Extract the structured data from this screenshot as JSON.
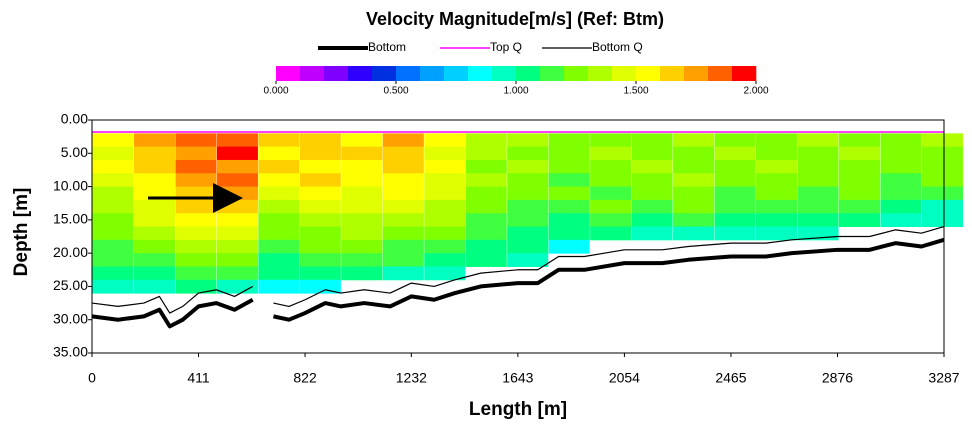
{
  "chart_data": {
    "type": "heatmap",
    "title": "Velocity Magnitude[m/s] (Ref: Btm)",
    "x_label": "Length [m]",
    "y_label": "Depth [m]",
    "xlim": [
      0,
      3287
    ],
    "ylim": [
      0,
      35
    ],
    "y_inverted": true,
    "xticks": [
      0,
      411,
      822,
      1232,
      1643,
      2054,
      2465,
      2876,
      3287
    ],
    "yticks": [
      {
        "value": 0,
        "label": "0.00"
      },
      {
        "value": 5,
        "label": "5.00"
      },
      {
        "value": 10,
        "label": "10.00"
      },
      {
        "value": 15,
        "label": "15.00"
      },
      {
        "value": 20,
        "label": "20.00"
      },
      {
        "value": 25,
        "label": "25.00"
      },
      {
        "value": 30,
        "label": "30.00"
      },
      {
        "value": 35,
        "label": "35.00"
      }
    ],
    "colorbar": {
      "lim": [
        0,
        2
      ],
      "ticks": [
        {
          "value": 0,
          "label": "0.000"
        },
        {
          "value": 0.5,
          "label": "0.500"
        },
        {
          "value": 1,
          "label": "1.000"
        },
        {
          "value": 1.5,
          "label": "1.500"
        },
        {
          "value": 2,
          "label": "2.000"
        }
      ],
      "colors": [
        "#ff00ff",
        "#c000ff",
        "#8000ff",
        "#3000ff",
        "#0030e0",
        "#0070ff",
        "#00a0ff",
        "#00d0ff",
        "#00ffff",
        "#00ffc0",
        "#00ff80",
        "#40ff40",
        "#80ff00",
        "#b0ff00",
        "#e0ff00",
        "#ffff00",
        "#ffd000",
        "#ffa000",
        "#ff6000",
        "#ff0000"
      ]
    },
    "heatmap": {
      "x": [
        80,
        240,
        400,
        560,
        720,
        880,
        1040,
        1200,
        1360,
        1520,
        1680,
        1840,
        2000,
        2160,
        2320,
        2480,
        2640,
        2800,
        2960,
        3120,
        3280
      ],
      "y": [
        3,
        5,
        7,
        9,
        11,
        13,
        15,
        17,
        19,
        21,
        23,
        25
      ],
      "values": [
        [
          1.5,
          1.7,
          1.8,
          1.8,
          1.6,
          1.6,
          1.5,
          1.7,
          1.5,
          1.3,
          1.3,
          1.2,
          1.2,
          1.2,
          1.3,
          1.2,
          1.2,
          1.3,
          1.2,
          1.2,
          1.3
        ],
        [
          1.4,
          1.6,
          1.7,
          1.9,
          1.5,
          1.6,
          1.6,
          1.6,
          1.4,
          1.3,
          1.2,
          1.2,
          1.3,
          1.2,
          1.2,
          1.3,
          1.2,
          1.2,
          1.3,
          1.2,
          1.2
        ],
        [
          1.5,
          1.6,
          1.8,
          1.7,
          1.6,
          1.5,
          1.5,
          1.6,
          1.5,
          1.2,
          1.3,
          1.2,
          1.2,
          1.3,
          1.2,
          1.2,
          1.3,
          1.2,
          1.2,
          1.2,
          1.2
        ],
        [
          1.4,
          1.5,
          1.7,
          1.8,
          1.5,
          1.6,
          1.5,
          1.5,
          1.4,
          1.3,
          1.2,
          1.1,
          1.2,
          1.2,
          1.3,
          1.2,
          1.2,
          1.2,
          1.2,
          1.1,
          1.2
        ],
        [
          1.3,
          1.5,
          1.6,
          1.7,
          1.4,
          1.5,
          1.4,
          1.5,
          1.4,
          1.2,
          1.2,
          1.2,
          1.1,
          1.2,
          1.2,
          1.1,
          1.2,
          1.1,
          1.2,
          1.1,
          1.1
        ],
        [
          1.3,
          1.4,
          1.6,
          1.6,
          1.3,
          1.4,
          1.4,
          1.4,
          1.3,
          1.2,
          1.1,
          1.1,
          1.2,
          1.1,
          1.2,
          1.1,
          1.1,
          1.1,
          1.1,
          1.0,
          0.9
        ],
        [
          1.2,
          1.4,
          1.5,
          1.5,
          1.2,
          1.3,
          1.3,
          1.3,
          1.3,
          1.1,
          1.1,
          1.0,
          1.1,
          1.0,
          1.1,
          1.0,
          1.0,
          1.0,
          1.0,
          0.9,
          0.9
        ],
        [
          1.2,
          1.3,
          1.4,
          1.4,
          1.2,
          1.2,
          1.3,
          1.2,
          1.2,
          1.1,
          1.0,
          1.0,
          1.0,
          0.9,
          0.9,
          0.9,
          0.9,
          0.9,
          null,
          null,
          null
        ],
        [
          1.1,
          1.2,
          1.3,
          1.3,
          1.1,
          1.2,
          1.2,
          1.1,
          1.1,
          1.0,
          1.0,
          0.8,
          null,
          null,
          null,
          null,
          null,
          null,
          null,
          null,
          null
        ],
        [
          1.1,
          1.1,
          1.2,
          1.2,
          1.0,
          1.1,
          1.1,
          1.1,
          1.0,
          1.0,
          0.9,
          null,
          null,
          null,
          null,
          null,
          null,
          null,
          null,
          null,
          null
        ],
        [
          1.0,
          1.0,
          1.1,
          1.1,
          1.0,
          1.0,
          1.0,
          0.9,
          0.9,
          null,
          null,
          null,
          null,
          null,
          null,
          null,
          null,
          null,
          null,
          null,
          null
        ],
        [
          0.9,
          0.9,
          1.0,
          0.9,
          0.8,
          0.8,
          null,
          null,
          null,
          null,
          null,
          null,
          null,
          null,
          null,
          null,
          null,
          null,
          null,
          null,
          null
        ]
      ]
    },
    "series": [
      {
        "name": "Bottom",
        "color": "#000000",
        "width": 4,
        "x": [
          0,
          100,
          200,
          260,
          300,
          350,
          411,
          480,
          550,
          620,
          660,
          700,
          760,
          822,
          900,
          960,
          1050,
          1150,
          1232,
          1320,
          1400,
          1500,
          1643,
          1720,
          1800,
          1900,
          2054,
          2200,
          2300,
          2465,
          2600,
          2700,
          2876,
          3000,
          3100,
          3200,
          3287
        ],
        "values": [
          29.5,
          30,
          29.5,
          28.5,
          31,
          30,
          28,
          27.5,
          28.5,
          27,
          null,
          29.5,
          30,
          29,
          27.5,
          28,
          27.5,
          28,
          26.5,
          27,
          26,
          25,
          24.5,
          24.5,
          22.5,
          22.5,
          21.5,
          21.5,
          21,
          20.5,
          20.5,
          20,
          19.5,
          19.5,
          18.5,
          19,
          18
        ]
      },
      {
        "name": "Top Q",
        "color": "#ff00ff",
        "width": 1.5,
        "x": [
          0,
          3287
        ],
        "values": [
          1.8,
          1.8
        ]
      },
      {
        "name": "Bottom Q",
        "color": "#000000",
        "width": 1.2,
        "x": [
          0,
          100,
          200,
          260,
          300,
          350,
          411,
          480,
          550,
          620,
          660,
          700,
          760,
          822,
          900,
          960,
          1050,
          1150,
          1232,
          1320,
          1400,
          1500,
          1643,
          1720,
          1800,
          1900,
          2054,
          2200,
          2300,
          2465,
          2600,
          2700,
          2876,
          3000,
          3100,
          3200,
          3287
        ],
        "values": [
          27.5,
          28,
          27.5,
          26.5,
          29,
          28,
          26,
          25.5,
          26.5,
          25,
          null,
          27.5,
          28,
          27,
          25.5,
          26,
          25.5,
          26,
          24.5,
          25,
          24,
          23,
          22.5,
          22.5,
          20.5,
          20.5,
          19.5,
          19.5,
          19,
          18.5,
          18.5,
          18,
          17.5,
          17.5,
          16.5,
          17,
          16
        ]
      }
    ]
  }
}
